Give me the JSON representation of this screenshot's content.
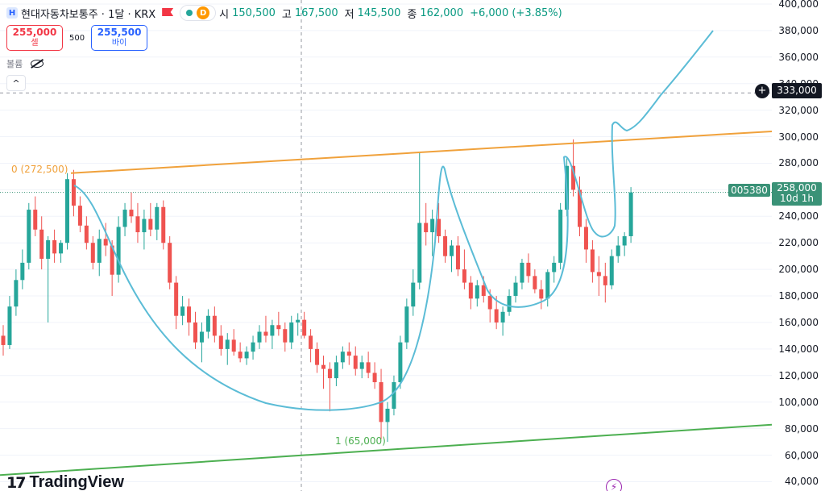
{
  "header": {
    "symbol_badge": "H",
    "title": "현대자동차보통주 · 1달 · KRX",
    "d_badge": "D",
    "ohlc": [
      {
        "key": "시",
        "value": "150,500"
      },
      {
        "key": "고",
        "value": "167,500"
      },
      {
        "key": "저",
        "value": "145,500"
      },
      {
        "key": "종",
        "value": "162,000"
      }
    ],
    "change": "+6,000 (+3.85%)"
  },
  "trade": {
    "sell_price": "255,000",
    "sell_label": "셀",
    "quantity": "500",
    "buy_price": "255,500",
    "buy_label": "바이"
  },
  "volume_label": "볼륨",
  "collapse_glyph": "^",
  "branding": {
    "mark": "17",
    "word": "TradingView"
  },
  "bolt_glyph": "⚡",
  "price_tags": {
    "alert_price": "333,000",
    "last_price": "258,000",
    "countdown": "10d 1h",
    "symbol_code": "005380",
    "plus_glyph": "+"
  },
  "levels": {
    "top_label": "0 (272,500)",
    "bottom_label": "1 (65,000)"
  },
  "colors": {
    "up": "#26a69a",
    "down": "#ef5350",
    "resistance": "#f0a13b",
    "support": "#4caf50",
    "pattern": "#5bbcd6"
  },
  "icons": [
    "symbol-icon",
    "flag-icon",
    "eye-off-icon",
    "chevron-up-icon",
    "tradingview-logo-icon",
    "bolt-icon",
    "plus-icon"
  ],
  "chart_data": {
    "type": "candlestick",
    "interval": "1M",
    "y_ticks": [
      40000,
      60000,
      80000,
      100000,
      120000,
      140000,
      160000,
      180000,
      200000,
      220000,
      240000,
      260000,
      280000,
      300000,
      320000,
      340000,
      360000,
      380000,
      400000
    ],
    "y_tick_labels": [
      "40,000",
      "60,000",
      "80,000",
      "100,000",
      "120,000",
      "140,000",
      "160,000",
      "180,000",
      "200,000",
      "220,000",
      "240,000",
      "260,000",
      "280,000",
      "300,000",
      "320,000",
      "340,000",
      "360,000",
      "380,000",
      "400,000"
    ],
    "ylim": [
      33000,
      403000
    ],
    "last_close": 258000,
    "alert_level": 333000,
    "trendlines": [
      {
        "name": "resistance",
        "x": [
          0,
          128
        ],
        "y": [
          272500,
          304000
        ]
      },
      {
        "name": "support",
        "x": [
          0,
          128
        ],
        "y": [
          45000,
          83000
        ]
      }
    ],
    "ohlc": [
      [
        150000,
        158000,
        135000,
        143000
      ],
      [
        143000,
        180000,
        140000,
        172000
      ],
      [
        172000,
        200000,
        165000,
        192000
      ],
      [
        192000,
        215000,
        185000,
        205000
      ],
      [
        205000,
        250000,
        200000,
        245000
      ],
      [
        245000,
        255000,
        225000,
        230000
      ],
      [
        230000,
        240000,
        200000,
        208000
      ],
      [
        208000,
        225000,
        160000,
        222000
      ],
      [
        222000,
        230000,
        205000,
        212000
      ],
      [
        212000,
        222000,
        205000,
        220000
      ],
      [
        220000,
        272500,
        215000,
        268000
      ],
      [
        268000,
        275000,
        240000,
        248000
      ],
      [
        248000,
        255000,
        228000,
        233000
      ],
      [
        233000,
        240000,
        215000,
        220000
      ],
      [
        220000,
        225000,
        200000,
        205000
      ],
      [
        205000,
        230000,
        195000,
        223000
      ],
      [
        223000,
        235000,
        210000,
        218000
      ],
      [
        218000,
        222000,
        180000,
        196000
      ],
      [
        196000,
        240000,
        190000,
        232000
      ],
      [
        232000,
        250000,
        225000,
        245000
      ],
      [
        245000,
        258000,
        235000,
        240000
      ],
      [
        240000,
        250000,
        220000,
        228000
      ],
      [
        228000,
        245000,
        215000,
        238000
      ],
      [
        238000,
        250000,
        225000,
        230000
      ],
      [
        230000,
        250000,
        222000,
        247000
      ],
      [
        247000,
        252000,
        215000,
        220000
      ],
      [
        220000,
        225000,
        185000,
        190000
      ],
      [
        190000,
        195000,
        155000,
        165000
      ],
      [
        165000,
        180000,
        158000,
        172000
      ],
      [
        172000,
        178000,
        150000,
        160000
      ],
      [
        160000,
        168000,
        140000,
        145000
      ],
      [
        145000,
        160000,
        130000,
        153000
      ],
      [
        153000,
        170000,
        148000,
        165000
      ],
      [
        165000,
        172000,
        145000,
        150000
      ],
      [
        150000,
        158000,
        135000,
        140000
      ],
      [
        140000,
        152000,
        128000,
        147000
      ],
      [
        147000,
        155000,
        135000,
        138000
      ],
      [
        138000,
        145000,
        130000,
        133000
      ],
      [
        133000,
        142000,
        128000,
        138000
      ],
      [
        138000,
        150000,
        132000,
        145000
      ],
      [
        145000,
        158000,
        140000,
        153000
      ],
      [
        153000,
        165000,
        145000,
        150000
      ],
      [
        150000,
        162000,
        140000,
        158000
      ],
      [
        158000,
        168000,
        150000,
        155000
      ],
      [
        155000,
        160000,
        138000,
        145000
      ],
      [
        145000,
        165000,
        140000,
        160000
      ],
      [
        160000,
        167000,
        150000,
        162000
      ],
      [
        162000,
        168000,
        148000,
        150000
      ],
      [
        150000,
        155000,
        130000,
        140000
      ],
      [
        140000,
        145000,
        122000,
        128000
      ],
      [
        128000,
        135000,
        110000,
        125000
      ],
      [
        125000,
        130000,
        93000,
        118000
      ],
      [
        118000,
        135000,
        112000,
        130000
      ],
      [
        130000,
        142000,
        125000,
        138000
      ],
      [
        138000,
        145000,
        128000,
        135000
      ],
      [
        135000,
        142000,
        120000,
        125000
      ],
      [
        125000,
        135000,
        118000,
        130000
      ],
      [
        130000,
        138000,
        118000,
        122000
      ],
      [
        122000,
        130000,
        110000,
        115000
      ],
      [
        115000,
        125000,
        72000,
        85000
      ],
      [
        85000,
        100000,
        70000,
        95000
      ],
      [
        95000,
        120000,
        90000,
        115000
      ],
      [
        115000,
        150000,
        110000,
        145000
      ],
      [
        145000,
        178000,
        140000,
        172000
      ],
      [
        172000,
        200000,
        165000,
        190000
      ],
      [
        190000,
        288000,
        185000,
        235000
      ],
      [
        235000,
        250000,
        218000,
        228000
      ],
      [
        228000,
        245000,
        210000,
        238000
      ],
      [
        238000,
        250000,
        220000,
        225000
      ],
      [
        225000,
        230000,
        205000,
        210000
      ],
      [
        210000,
        222000,
        198000,
        218000
      ],
      [
        218000,
        225000,
        195000,
        200000
      ],
      [
        200000,
        215000,
        185000,
        190000
      ],
      [
        190000,
        195000,
        170000,
        178000
      ],
      [
        178000,
        192000,
        172000,
        188000
      ],
      [
        188000,
        195000,
        175000,
        180000
      ],
      [
        180000,
        185000,
        160000,
        170000
      ],
      [
        170000,
        180000,
        155000,
        160000
      ],
      [
        160000,
        172000,
        150000,
        168000
      ],
      [
        168000,
        185000,
        165000,
        180000
      ],
      [
        180000,
        195000,
        175000,
        190000
      ],
      [
        190000,
        208000,
        185000,
        205000
      ],
      [
        205000,
        212000,
        190000,
        195000
      ],
      [
        195000,
        200000,
        182000,
        185000
      ],
      [
        185000,
        192000,
        170000,
        178000
      ],
      [
        178000,
        200000,
        172000,
        198000
      ],
      [
        198000,
        210000,
        190000,
        205000
      ],
      [
        205000,
        250000,
        200000,
        245000
      ],
      [
        245000,
        285000,
        240000,
        278000
      ],
      [
        278000,
        298000,
        255000,
        260000
      ],
      [
        260000,
        270000,
        225000,
        232000
      ],
      [
        232000,
        238000,
        205000,
        215000
      ],
      [
        215000,
        222000,
        190000,
        198000
      ],
      [
        198000,
        210000,
        180000,
        195000
      ],
      [
        195000,
        205000,
        175000,
        188000
      ],
      [
        188000,
        215000,
        185000,
        210000
      ],
      [
        210000,
        225000,
        205000,
        218000
      ],
      [
        218000,
        228000,
        210000,
        225000
      ],
      [
        225000,
        262000,
        220000,
        258000
      ]
    ],
    "annotations": [
      "0 (272,500)",
      "1 (65,000)"
    ]
  }
}
